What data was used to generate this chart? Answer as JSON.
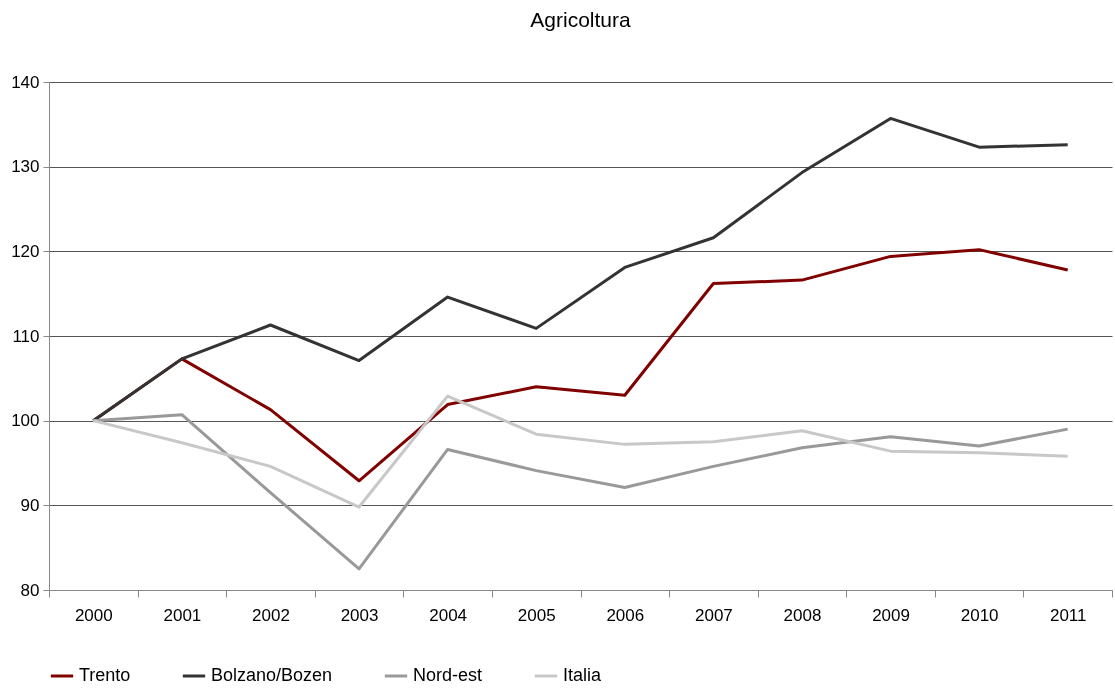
{
  "chart_data": {
    "type": "line",
    "title": "Agricoltura",
    "categories": [
      "2000",
      "2001",
      "2002",
      "2003",
      "2004",
      "2005",
      "2006",
      "2007",
      "2008",
      "2009",
      "2010",
      "2011"
    ],
    "series": [
      {
        "name": "Trento",
        "color": "#800000",
        "values": [
          100,
          107.3,
          101.3,
          92.9,
          101.9,
          104.0,
          103.0,
          116.2,
          116.6,
          119.4,
          120.2,
          117.8
        ]
      },
      {
        "name": "Bolzano/Bozen",
        "color": "#333333",
        "values": [
          100,
          107.3,
          111.3,
          107.1,
          114.6,
          110.9,
          118.1,
          121.6,
          129.3,
          135.7,
          132.3,
          132.6
        ]
      },
      {
        "name": "Nord-est",
        "color": "#999999",
        "values": [
          100,
          100.7,
          91.5,
          82.5,
          96.6,
          94.1,
          92.1,
          94.6,
          96.8,
          98.1,
          97.0,
          99.0
        ]
      },
      {
        "name": "Italia",
        "color": "#c8c8c8",
        "values": [
          100,
          97.4,
          94.6,
          89.8,
          102.9,
          98.4,
          97.2,
          97.5,
          98.8,
          96.4,
          96.2,
          95.8
        ]
      }
    ],
    "ylim": [
      80,
      140
    ],
    "yticks": [
      80,
      90,
      100,
      110,
      120,
      130,
      140
    ],
    "grid": "y",
    "legend": "bottom",
    "marker": "none",
    "line_style": "solid"
  }
}
